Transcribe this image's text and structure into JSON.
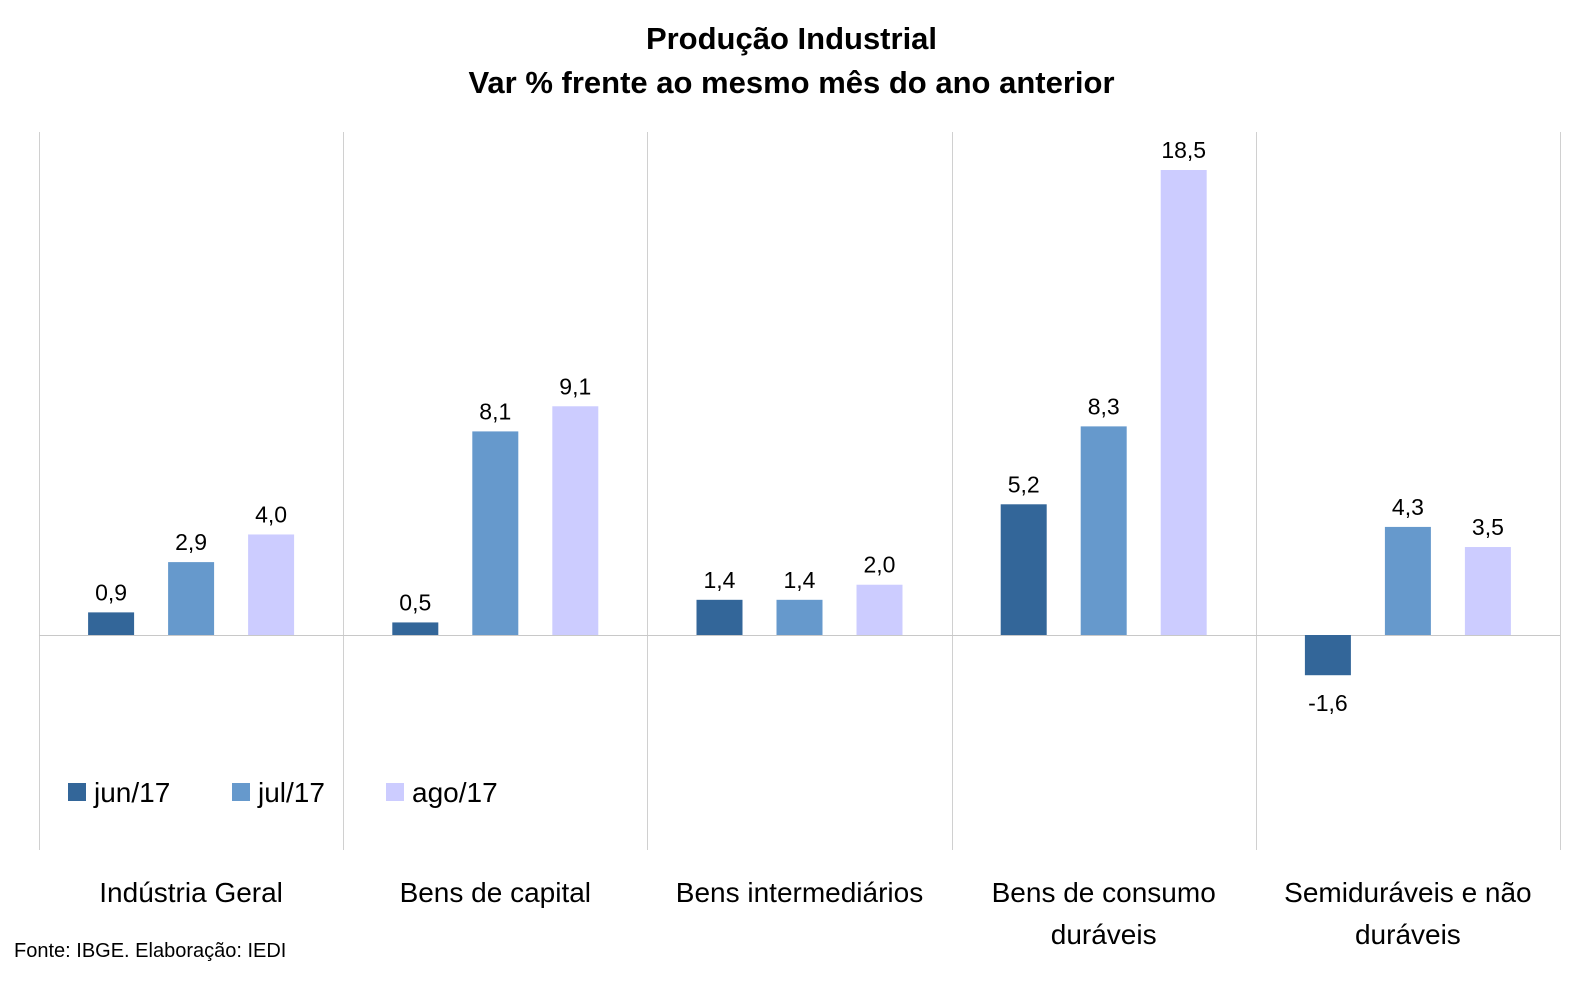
{
  "title_line1": "Produção Industrial",
  "title_line2": "Var % frente ao mesmo mês do ano anterior",
  "source": "Fonte: IBGE. Elaboração: IEDI",
  "chart_data": {
    "type": "bar",
    "categories": [
      [
        "Indústria Geral"
      ],
      [
        "Bens de capital"
      ],
      [
        "Bens intermediários"
      ],
      [
        "Bens de consumo",
        "duráveis"
      ],
      [
        "Semiduráveis e não",
        "duráveis"
      ]
    ],
    "series": [
      {
        "name": "jun/17",
        "color": "#336699",
        "values": [
          0.9,
          0.5,
          1.4,
          5.2,
          -1.6
        ],
        "labels": [
          "0,9",
          "0,5",
          "1,4",
          "5,2",
          "-1,6"
        ]
      },
      {
        "name": "jul/17",
        "color": "#6699CC",
        "values": [
          2.9,
          8.1,
          1.4,
          8.3,
          4.3
        ],
        "labels": [
          "2,9",
          "8,1",
          "1,4",
          "8,3",
          "4,3"
        ]
      },
      {
        "name": "ago/17",
        "color": "#CCCCFF",
        "values": [
          4.0,
          9.1,
          2.0,
          18.5,
          3.5
        ],
        "labels": [
          "4,0",
          "9,1",
          "2,0",
          "18,5",
          "3,5"
        ]
      }
    ],
    "ylim": [
      -8.6,
      20
    ],
    "grid": false,
    "legend": "bottom-left",
    "data_labels": true
  }
}
